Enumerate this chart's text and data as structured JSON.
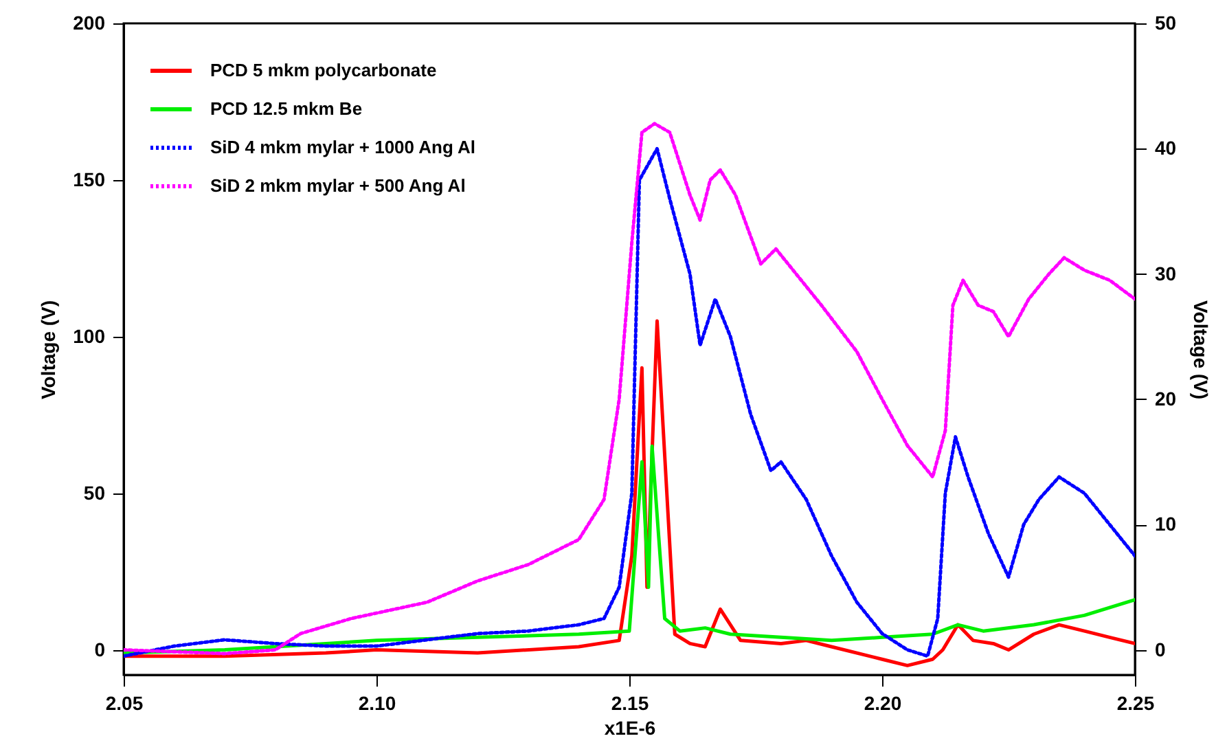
{
  "chart_data": {
    "type": "line",
    "xlabel": "x1E-6",
    "ylabel": "Voltage (V)",
    "y2label": "Voltage (V)",
    "xlim": [
      2.05,
      2.25
    ],
    "xticks": [
      {
        "value": 2.05,
        "label": "2.05"
      },
      {
        "value": 2.1,
        "label": "2.10"
      },
      {
        "value": 2.15,
        "label": "2.15"
      },
      {
        "value": 2.2,
        "label": "2.20"
      },
      {
        "value": 2.25,
        "label": "2.25"
      }
    ],
    "ylim": [
      -8,
      200
    ],
    "yticks": [
      0,
      50,
      100,
      150,
      200
    ],
    "y2lim": [
      -2,
      50
    ],
    "y2ticks": [
      0,
      10,
      20,
      30,
      40,
      50
    ],
    "legend": "top left",
    "grid": false,
    "marker": "none",
    "series": [
      {
        "name": "PCD 5 mkm polycarbonate",
        "color": "#ff0000",
        "line_style": "solid",
        "axis": "y",
        "x": [
          2.05,
          2.07,
          2.09,
          2.1,
          2.12,
          2.14,
          2.148,
          2.1505,
          2.1525,
          2.1535,
          2.1555,
          2.159,
          2.162,
          2.165,
          2.168,
          2.172,
          2.18,
          2.185,
          2.19,
          2.2,
          2.205,
          2.21,
          2.212,
          2.215,
          2.218,
          2.222,
          2.225,
          2.23,
          2.235,
          2.24,
          2.245,
          2.25
        ],
        "values": [
          -2,
          -2,
          -1,
          0,
          -1,
          1,
          3,
          30,
          90,
          20,
          105,
          5,
          2,
          1,
          13,
          3,
          2,
          3,
          1,
          -3,
          -5,
          -3,
          0,
          8,
          3,
          2,
          0,
          5,
          8,
          6,
          4,
          2
        ]
      },
      {
        "name": "PCD 12.5 mkm Be",
        "color": "#00ee00",
        "line_style": "solid",
        "axis": "y",
        "x": [
          2.05,
          2.07,
          2.09,
          2.1,
          2.12,
          2.14,
          2.15,
          2.1525,
          2.1538,
          2.1545,
          2.157,
          2.16,
          2.165,
          2.17,
          2.18,
          2.19,
          2.2,
          2.21,
          2.215,
          2.22,
          2.23,
          2.24,
          2.25
        ],
        "values": [
          -1,
          0,
          2,
          3,
          4,
          5,
          6,
          60,
          20,
          65,
          10,
          6,
          7,
          5,
          4,
          3,
          4,
          5,
          8,
          6,
          8,
          11,
          16
        ]
      },
      {
        "name": "SiD 4 mkm mylar + 1000 Ang Al",
        "color": "#0000ff",
        "line_style": "dotted",
        "axis": "y2",
        "x": [
          2.05,
          2.06,
          2.07,
          2.08,
          2.09,
          2.1,
          2.11,
          2.12,
          2.13,
          2.14,
          2.145,
          2.148,
          2.1505,
          2.152,
          2.1555,
          2.158,
          2.162,
          2.164,
          2.167,
          2.17,
          2.174,
          2.178,
          2.18,
          2.185,
          2.19,
          2.195,
          2.2,
          2.205,
          2.209,
          2.211,
          2.2125,
          2.2145,
          2.217,
          2.221,
          2.225,
          2.228,
          2.231,
          2.235,
          2.24,
          2.245,
          2.25
        ],
        "values": [
          -0.5,
          0.3,
          0.8,
          0.5,
          0.3,
          0.3,
          0.8,
          1.3,
          1.5,
          2,
          2.5,
          5,
          12.5,
          37.5,
          40,
          36,
          30,
          24.3,
          28,
          25,
          18.8,
          14.3,
          15,
          12,
          7.5,
          3.8,
          1.3,
          0,
          -0.5,
          2.5,
          12.5,
          17,
          13.8,
          9.3,
          5.8,
          10,
          12,
          13.8,
          12.5,
          10,
          7.5
        ]
      },
      {
        "name": "SiD 2 mkm mylar +  500 Ang Al",
        "color": "#ff00ff",
        "line_style": "dotted",
        "axis": "y2",
        "x": [
          2.05,
          2.07,
          2.08,
          2.085,
          2.095,
          2.11,
          2.12,
          2.13,
          2.14,
          2.145,
          2.148,
          2.1505,
          2.1525,
          2.155,
          2.158,
          2.162,
          2.164,
          2.166,
          2.168,
          2.171,
          2.176,
          2.179,
          2.183,
          2.188,
          2.195,
          2.2,
          2.205,
          2.21,
          2.2125,
          2.214,
          2.216,
          2.219,
          2.222,
          2.225,
          2.229,
          2.233,
          2.236,
          2.24,
          2.245,
          2.25
        ],
        "values": [
          0,
          -0.3,
          0,
          1.3,
          2.5,
          3.8,
          5.5,
          6.8,
          8.8,
          12,
          20,
          32.5,
          41.3,
          42,
          41.3,
          36.3,
          34.3,
          37.5,
          38.3,
          36.3,
          30.8,
          32,
          30,
          27.5,
          23.8,
          20,
          16.3,
          13.8,
          17.5,
          27.5,
          29.5,
          27.5,
          27,
          25,
          28,
          30,
          31.3,
          30.3,
          29.5,
          28
        ]
      }
    ]
  }
}
